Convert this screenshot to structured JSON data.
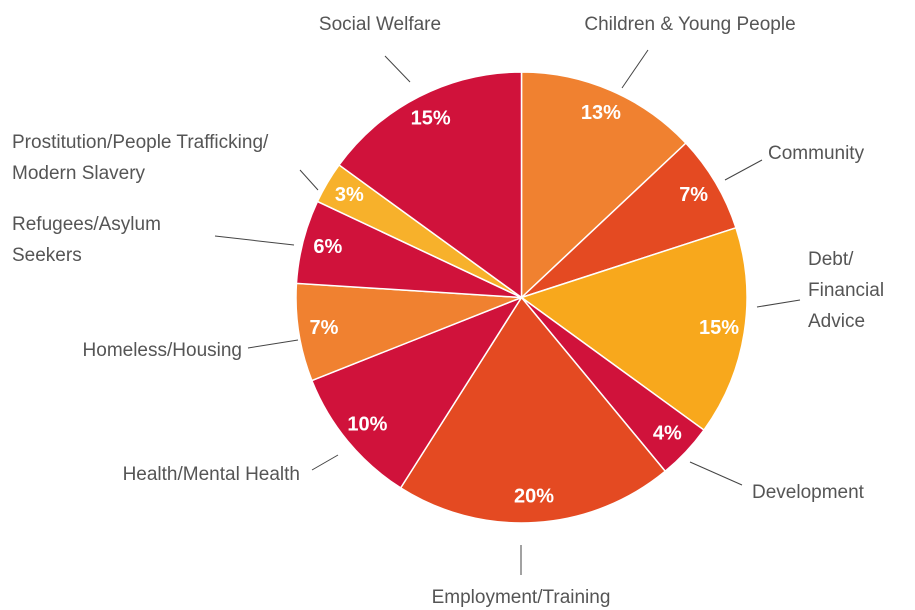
{
  "chart_data": {
    "type": "pie",
    "categories": [
      "Children & Young People",
      "Community",
      "Debt/\nFinancial\nAdvice",
      "Development",
      "Employment/Training",
      "Health/Mental Health",
      "Homeless/Housing",
      "Refugees/Asylum\nSeekers",
      "Prostitution/People Trafficking/\nModern Slavery",
      "Social Welfare"
    ],
    "values": [
      13,
      7,
      15,
      4,
      20,
      10,
      7,
      6,
      3,
      15
    ],
    "value_labels": [
      "13%",
      "7%",
      "15%",
      "4%",
      "20%",
      "10%",
      "7%",
      "6%",
      "3%",
      "15%"
    ],
    "colors": [
      "#f08130",
      "#e44a22",
      "#f8a81c",
      "#d0123b",
      "#e44a22",
      "#d0123b",
      "#f08130",
      "#d0123b",
      "#f7b12b",
      "#d0123b"
    ]
  }
}
